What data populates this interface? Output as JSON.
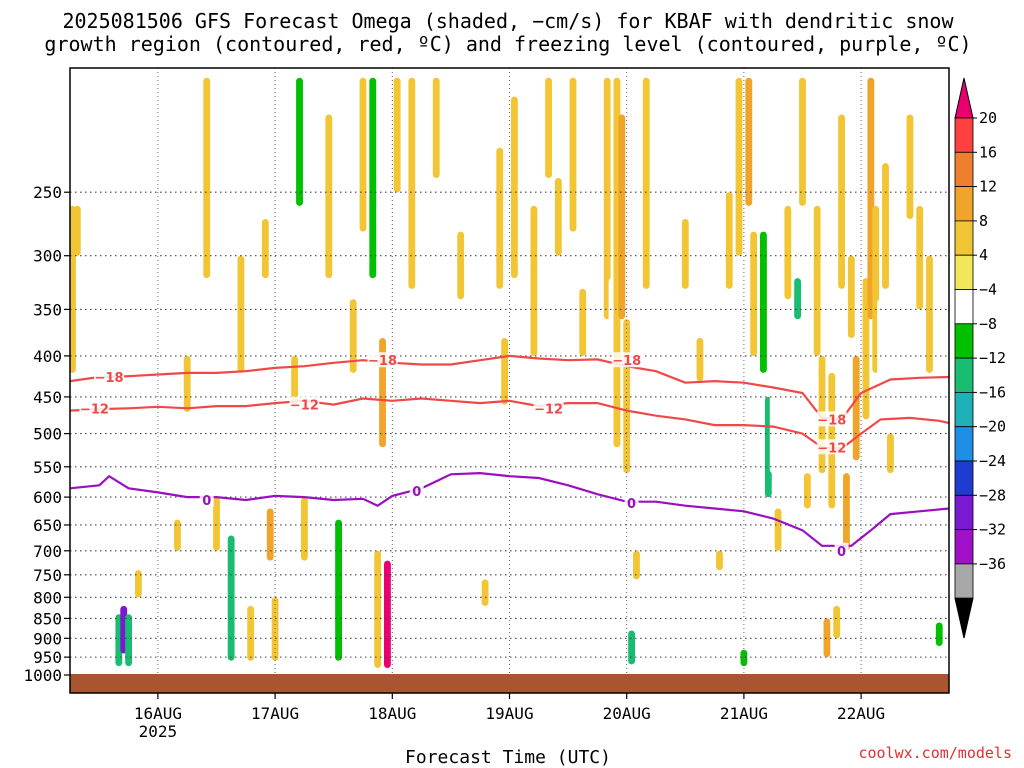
{
  "title": {
    "line1": "2025081506 GFS Forecast Omega (shaded, −cm/s) for KBAF with dendritic snow",
    "line2": "growth region (contoured, red, ºC) and freezing level (contoured, purple, ºC)"
  },
  "credit": "coolwx.com/models",
  "chart_data": {
    "type": "heatmap",
    "xlabel": "Forecast Time (UTC)",
    "x_ticks": [
      {
        "label": "16AUG",
        "sublabel": "2025",
        "hours": 18
      },
      {
        "label": "17AUG",
        "sublabel": "",
        "hours": 42
      },
      {
        "label": "18AUG",
        "sublabel": "",
        "hours": 66
      },
      {
        "label": "19AUG",
        "sublabel": "",
        "hours": 90
      },
      {
        "label": "20AUG",
        "sublabel": "",
        "hours": 114
      },
      {
        "label": "21AUG",
        "sublabel": "",
        "hours": 138
      },
      {
        "label": "22AUG",
        "sublabel": "",
        "hours": 162
      }
    ],
    "xlim_hours": [
      0,
      180
    ],
    "y_axis": {
      "scale": "log",
      "reversed": true,
      "ylim": [
        1000,
        175
      ],
      "ticks": [
        250,
        300,
        350,
        400,
        450,
        500,
        550,
        600,
        650,
        700,
        750,
        800,
        850,
        900,
        950,
        1000
      ]
    },
    "grid": true,
    "colorbar": {
      "position": "right",
      "labels": [
        "20",
        "16",
        "12",
        "8",
        "4",
        "−4",
        "−8",
        "−12",
        "−16",
        "−20",
        "−24",
        "−28",
        "−32",
        "−36"
      ],
      "colors": [
        "#e8006e",
        "#ff4040",
        "#ef7f2e",
        "#f0a52a",
        "#f1c534",
        "#f2e75a",
        "#ffffff",
        "#00c000",
        "#18bd72",
        "#1fb0b8",
        "#1e8ee6",
        "#1e3cd0",
        "#7a1ad0",
        "#a010c8",
        "#a8a8a8",
        "#000000"
      ]
    },
    "omega_cells": [
      {
        "t": 0.5,
        "p1": 260,
        "p2": 420,
        "v": 8
      },
      {
        "t": 1.5,
        "p1": 260,
        "p2": 300,
        "v": 6
      },
      {
        "t": 10,
        "p1": 840,
        "p2": 975,
        "v": -12
      },
      {
        "t": 11,
        "p1": 820,
        "p2": 940,
        "v": -28
      },
      {
        "t": 12,
        "p1": 840,
        "p2": 975,
        "v": -12
      },
      {
        "t": 14,
        "p1": 740,
        "p2": 800,
        "v": 5
      },
      {
        "t": 15,
        "p1": 330,
        "p2": 400,
        "v": -6
      },
      {
        "t": 22,
        "p1": 640,
        "p2": 700,
        "v": 5
      },
      {
        "t": 24,
        "p1": 400,
        "p2": 470,
        "v": 5
      },
      {
        "t": 28,
        "p1": 180,
        "p2": 320,
        "v": 6
      },
      {
        "t": 30,
        "p1": 600,
        "p2": 700,
        "v": 5
      },
      {
        "t": 33,
        "p1": 670,
        "p2": 960,
        "v": -12
      },
      {
        "t": 35,
        "p1": 300,
        "p2": 420,
        "v": 6
      },
      {
        "t": 36,
        "p1": 180,
        "p2": 270,
        "v": -6
      },
      {
        "t": 37,
        "p1": 820,
        "p2": 960,
        "v": 6
      },
      {
        "t": 40,
        "p1": 270,
        "p2": 320,
        "v": 8
      },
      {
        "t": 41,
        "p1": 620,
        "p2": 720,
        "v": 10
      },
      {
        "t": 42,
        "p1": 800,
        "p2": 960,
        "v": 6
      },
      {
        "t": 44,
        "p1": 180,
        "p2": 300,
        "v": -6
      },
      {
        "t": 46,
        "p1": 400,
        "p2": 460,
        "v": 5
      },
      {
        "t": 47,
        "p1": 180,
        "p2": 260,
        "v": -8
      },
      {
        "t": 48,
        "p1": 600,
        "p2": 720,
        "v": 6
      },
      {
        "t": 50,
        "p1": 180,
        "p2": 230,
        "v": -6
      },
      {
        "t": 51,
        "p1": 800,
        "p2": 900,
        "v": -6
      },
      {
        "t": 53,
        "p1": 200,
        "p2": 320,
        "v": 6
      },
      {
        "t": 55,
        "p1": 640,
        "p2": 960,
        "v": -8
      },
      {
        "t": 57,
        "p1": 260,
        "p2": 380,
        "v": -6
      },
      {
        "t": 58,
        "p1": 340,
        "p2": 420,
        "v": 6
      },
      {
        "t": 60,
        "p1": 180,
        "p2": 280,
        "v": 6
      },
      {
        "t": 62,
        "p1": 180,
        "p2": 320,
        "v": -8
      },
      {
        "t": 63,
        "p1": 700,
        "p2": 980,
        "v": 6
      },
      {
        "t": 64,
        "p1": 380,
        "p2": 520,
        "v": 10
      },
      {
        "t": 65,
        "p1": 720,
        "p2": 980,
        "v": 20
      },
      {
        "t": 66,
        "p1": 420,
        "p2": 560,
        "v": -6
      },
      {
        "t": 67,
        "p1": 180,
        "p2": 250,
        "v": 6
      },
      {
        "t": 68,
        "p1": 450,
        "p2": 520,
        "v": -6
      },
      {
        "t": 69,
        "p1": 880,
        "p2": 960,
        "v": -6
      },
      {
        "t": 70,
        "p1": 180,
        "p2": 330,
        "v": 5
      },
      {
        "t": 72,
        "p1": 900,
        "p2": 960,
        "v": -6
      },
      {
        "t": 75,
        "p1": 180,
        "p2": 240,
        "v": 5
      },
      {
        "t": 80,
        "p1": 280,
        "p2": 340,
        "v": 5
      },
      {
        "t": 85,
        "p1": 760,
        "p2": 820,
        "v": 5
      },
      {
        "t": 88,
        "p1": 220,
        "p2": 330,
        "v": 6
      },
      {
        "t": 89,
        "p1": 380,
        "p2": 460,
        "v": 8
      },
      {
        "t": 91,
        "p1": 190,
        "p2": 320,
        "v": 5
      },
      {
        "t": 93,
        "p1": 600,
        "p2": 960,
        "v": -6
      },
      {
        "t": 95,
        "p1": 260,
        "p2": 400,
        "v": 5
      },
      {
        "t": 98,
        "p1": 180,
        "p2": 240,
        "v": 5
      },
      {
        "t": 100,
        "p1": 240,
        "p2": 300,
        "v": 5
      },
      {
        "t": 103,
        "p1": 180,
        "p2": 280,
        "v": 5
      },
      {
        "t": 105,
        "p1": 330,
        "p2": 400,
        "v": 5
      },
      {
        "t": 108,
        "p1": 180,
        "p2": 270,
        "v": -6
      },
      {
        "t": 110,
        "p1": 180,
        "p2": 360,
        "v": 6
      },
      {
        "t": 111,
        "p1": 320,
        "p2": 420,
        "v": -6
      },
      {
        "t": 112,
        "p1": 180,
        "p2": 520,
        "v": 8
      },
      {
        "t": 113,
        "p1": 200,
        "p2": 360,
        "v": 12
      },
      {
        "t": 114,
        "p1": 360,
        "p2": 560,
        "v": 6
      },
      {
        "t": 115,
        "p1": 880,
        "p2": 970,
        "v": -12
      },
      {
        "t": 116,
        "p1": 700,
        "p2": 760,
        "v": 5
      },
      {
        "t": 118,
        "p1": 180,
        "p2": 330,
        "v": 5
      },
      {
        "t": 121,
        "p1": 300,
        "p2": 370,
        "v": -6
      },
      {
        "t": 124,
        "p1": 200,
        "p2": 340,
        "v": -6
      },
      {
        "t": 126,
        "p1": 270,
        "p2": 330,
        "v": 6
      },
      {
        "t": 129,
        "p1": 380,
        "p2": 430,
        "v": 6
      },
      {
        "t": 131,
        "p1": 180,
        "p2": 230,
        "v": -6
      },
      {
        "t": 133,
        "p1": 700,
        "p2": 740,
        "v": 5
      },
      {
        "t": 135,
        "p1": 250,
        "p2": 330,
        "v": 5
      },
      {
        "t": 136,
        "p1": 670,
        "p2": 700,
        "v": -6
      },
      {
        "t": 137,
        "p1": 180,
        "p2": 300,
        "v": 5
      },
      {
        "t": 138,
        "p1": 930,
        "p2": 975,
        "v": -10
      },
      {
        "t": 139,
        "p1": 180,
        "p2": 260,
        "v": 12
      },
      {
        "t": 140,
        "p1": 280,
        "p2": 400,
        "v": 5
      },
      {
        "t": 141,
        "p1": 540,
        "p2": 560,
        "v": -4
      },
      {
        "t": 142,
        "p1": 280,
        "p2": 420,
        "v": -10
      },
      {
        "t": 143,
        "p1": 450,
        "p2": 600,
        "v": -12
      },
      {
        "t": 144,
        "p1": 420,
        "p2": 560,
        "v": -6
      },
      {
        "t": 145,
        "p1": 620,
        "p2": 700,
        "v": 5
      },
      {
        "t": 147,
        "p1": 260,
        "p2": 340,
        "v": 5
      },
      {
        "t": 149,
        "p1": 320,
        "p2": 360,
        "v": -12
      },
      {
        "t": 150,
        "p1": 180,
        "p2": 260,
        "v": 6
      },
      {
        "t": 151,
        "p1": 560,
        "p2": 620,
        "v": 6
      },
      {
        "t": 153,
        "p1": 260,
        "p2": 400,
        "v": 5
      },
      {
        "t": 154,
        "p1": 400,
        "p2": 560,
        "v": 6
      },
      {
        "t": 155,
        "p1": 850,
        "p2": 950,
        "v": 10
      },
      {
        "t": 156,
        "p1": 420,
        "p2": 620,
        "v": 8
      },
      {
        "t": 157,
        "p1": 820,
        "p2": 900,
        "v": 6
      },
      {
        "t": 158,
        "p1": 200,
        "p2": 330,
        "v": 5
      },
      {
        "t": 159,
        "p1": 560,
        "p2": 700,
        "v": 10
      },
      {
        "t": 160,
        "p1": 300,
        "p2": 380,
        "v": 6
      },
      {
        "t": 161,
        "p1": 400,
        "p2": 540,
        "v": 10
      },
      {
        "t": 162,
        "p1": 180,
        "p2": 250,
        "v": -6
      },
      {
        "t": 163,
        "p1": 320,
        "p2": 480,
        "v": 8
      },
      {
        "t": 164,
        "p1": 180,
        "p2": 360,
        "v": 12
      },
      {
        "t": 165,
        "p1": 260,
        "p2": 420,
        "v": 6
      },
      {
        "t": 166,
        "p1": 340,
        "p2": 460,
        "v": -6
      },
      {
        "t": 167,
        "p1": 230,
        "p2": 330,
        "v": 5
      },
      {
        "t": 168,
        "p1": 500,
        "p2": 560,
        "v": 5
      },
      {
        "t": 170,
        "p1": 520,
        "p2": 560,
        "v": -6
      },
      {
        "t": 172,
        "p1": 200,
        "p2": 270,
        "v": 5
      },
      {
        "t": 174,
        "p1": 260,
        "p2": 350,
        "v": 5
      },
      {
        "t": 176,
        "p1": 300,
        "p2": 420,
        "v": 5
      },
      {
        "t": 178,
        "p1": 860,
        "p2": 920,
        "v": -8
      }
    ],
    "contours": [
      {
        "label": "−18",
        "color": "#f04848",
        "label_at": [
          {
            "t": 8.0,
            "p": 425
          },
          {
            "t": 64.0,
            "p": 405
          },
          {
            "t": 114.0,
            "p": 405
          },
          {
            "t": 156.0,
            "p": 480
          }
        ],
        "points": [
          [
            0,
            430
          ],
          [
            6,
            425
          ],
          [
            12,
            424
          ],
          [
            18,
            422
          ],
          [
            24,
            420
          ],
          [
            30,
            420
          ],
          [
            36,
            418
          ],
          [
            42,
            414
          ],
          [
            48,
            412
          ],
          [
            54,
            408
          ],
          [
            60,
            405
          ],
          [
            66,
            408
          ],
          [
            72,
            410
          ],
          [
            78,
            410
          ],
          [
            84,
            405
          ],
          [
            90,
            400
          ],
          [
            96,
            403
          ],
          [
            102,
            405
          ],
          [
            108,
            404
          ],
          [
            114,
            412
          ],
          [
            120,
            418
          ],
          [
            126,
            432
          ],
          [
            132,
            430
          ],
          [
            138,
            432
          ],
          [
            144,
            438
          ],
          [
            150,
            445
          ],
          [
            154,
            478
          ],
          [
            158,
            480
          ],
          [
            162,
            445
          ],
          [
            168,
            428
          ],
          [
            174,
            426
          ],
          [
            180,
            425
          ]
        ]
      },
      {
        "label": "−12",
        "color": "#f04848",
        "label_at": [
          {
            "t": 5.0,
            "p": 465
          },
          {
            "t": 48.0,
            "p": 460
          },
          {
            "t": 98.0,
            "p": 465
          },
          {
            "t": 156.0,
            "p": 520
          }
        ],
        "points": [
          [
            0,
            468
          ],
          [
            6,
            466
          ],
          [
            12,
            465
          ],
          [
            18,
            463
          ],
          [
            24,
            465
          ],
          [
            30,
            462
          ],
          [
            36,
            462
          ],
          [
            42,
            458
          ],
          [
            48,
            455
          ],
          [
            54,
            460
          ],
          [
            60,
            452
          ],
          [
            66,
            455
          ],
          [
            72,
            452
          ],
          [
            78,
            455
          ],
          [
            84,
            458
          ],
          [
            90,
            455
          ],
          [
            96,
            462
          ],
          [
            102,
            458
          ],
          [
            108,
            458
          ],
          [
            114,
            468
          ],
          [
            120,
            475
          ],
          [
            126,
            480
          ],
          [
            132,
            488
          ],
          [
            138,
            488
          ],
          [
            144,
            490
          ],
          [
            150,
            500
          ],
          [
            154,
            520
          ],
          [
            158,
            522
          ],
          [
            162,
            500
          ],
          [
            166,
            480
          ],
          [
            172,
            478
          ],
          [
            178,
            482
          ],
          [
            180,
            485
          ]
        ]
      },
      {
        "label": "0",
        "color": "#9a10c0",
        "label_at": [
          {
            "t": 28.0,
            "p": 605
          },
          {
            "t": 71.0,
            "p": 590
          },
          {
            "t": 115.0,
            "p": 610
          },
          {
            "t": 158.0,
            "p": 700
          }
        ],
        "points": [
          [
            0,
            585
          ],
          [
            6,
            580
          ],
          [
            8,
            565
          ],
          [
            12,
            585
          ],
          [
            18,
            592
          ],
          [
            24,
            600
          ],
          [
            30,
            600
          ],
          [
            36,
            605
          ],
          [
            42,
            598
          ],
          [
            48,
            600
          ],
          [
            54,
            605
          ],
          [
            60,
            603
          ],
          [
            63,
            615
          ],
          [
            66,
            598
          ],
          [
            72,
            585
          ],
          [
            78,
            562
          ],
          [
            84,
            560
          ],
          [
            90,
            565
          ],
          [
            96,
            568
          ],
          [
            102,
            580
          ],
          [
            108,
            595
          ],
          [
            114,
            608
          ],
          [
            120,
            608
          ],
          [
            126,
            615
          ],
          [
            132,
            620
          ],
          [
            138,
            625
          ],
          [
            144,
            638
          ],
          [
            150,
            660
          ],
          [
            154,
            690
          ],
          [
            160,
            690
          ],
          [
            164,
            660
          ],
          [
            168,
            630
          ],
          [
            174,
            625
          ],
          [
            180,
            620
          ]
        ]
      }
    ]
  }
}
